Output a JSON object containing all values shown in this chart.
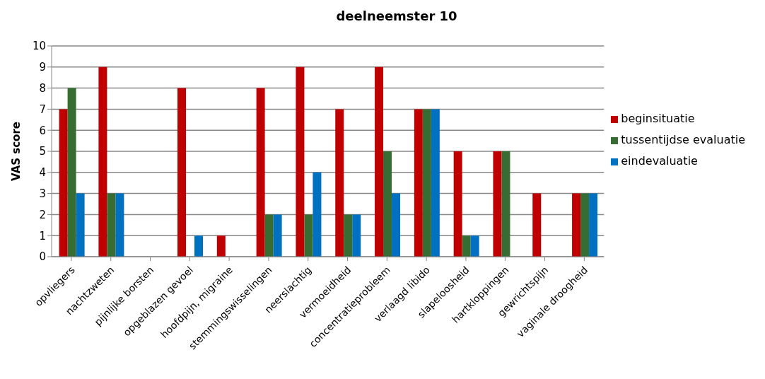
{
  "chart_data": {
    "type": "bar",
    "title": "deelneemster 10",
    "ylabel": "VAS score",
    "categories": [
      "opvliegers",
      "nachtzweten",
      "pijnlijke borsten",
      "opgeblazen gevoel",
      "hoofdpijn, migraine",
      "stemmingswisselingen",
      "neerslachtig",
      "vermoeidheid",
      "concentratieprobleem",
      "verlaagd libido",
      "slapeloosheid",
      "hartkloppingen",
      "gewrichtspijn",
      "vaginale droogheid"
    ],
    "series": [
      {
        "name": "beginsituatie",
        "color": "#c00000",
        "values": [
          7,
          9,
          0,
          8,
          1,
          8,
          9,
          7,
          9,
          7,
          5,
          5,
          3,
          3
        ]
      },
      {
        "name": "tussentijdse evaluatie",
        "color": "#376d32",
        "values": [
          8,
          3,
          0,
          0,
          0,
          2,
          2,
          2,
          5,
          7,
          1,
          5,
          0,
          3
        ]
      },
      {
        "name": "eindevaluatie",
        "color": "#0070c0",
        "values": [
          3,
          3,
          0,
          1,
          0,
          2,
          4,
          2,
          3,
          7,
          1,
          0,
          0,
          3
        ]
      }
    ],
    "ylim": [
      0,
      10
    ],
    "yticks": [
      0,
      1,
      2,
      3,
      4,
      5,
      6,
      7,
      8,
      9,
      10
    ],
    "grid": "y",
    "legend": "right"
  }
}
